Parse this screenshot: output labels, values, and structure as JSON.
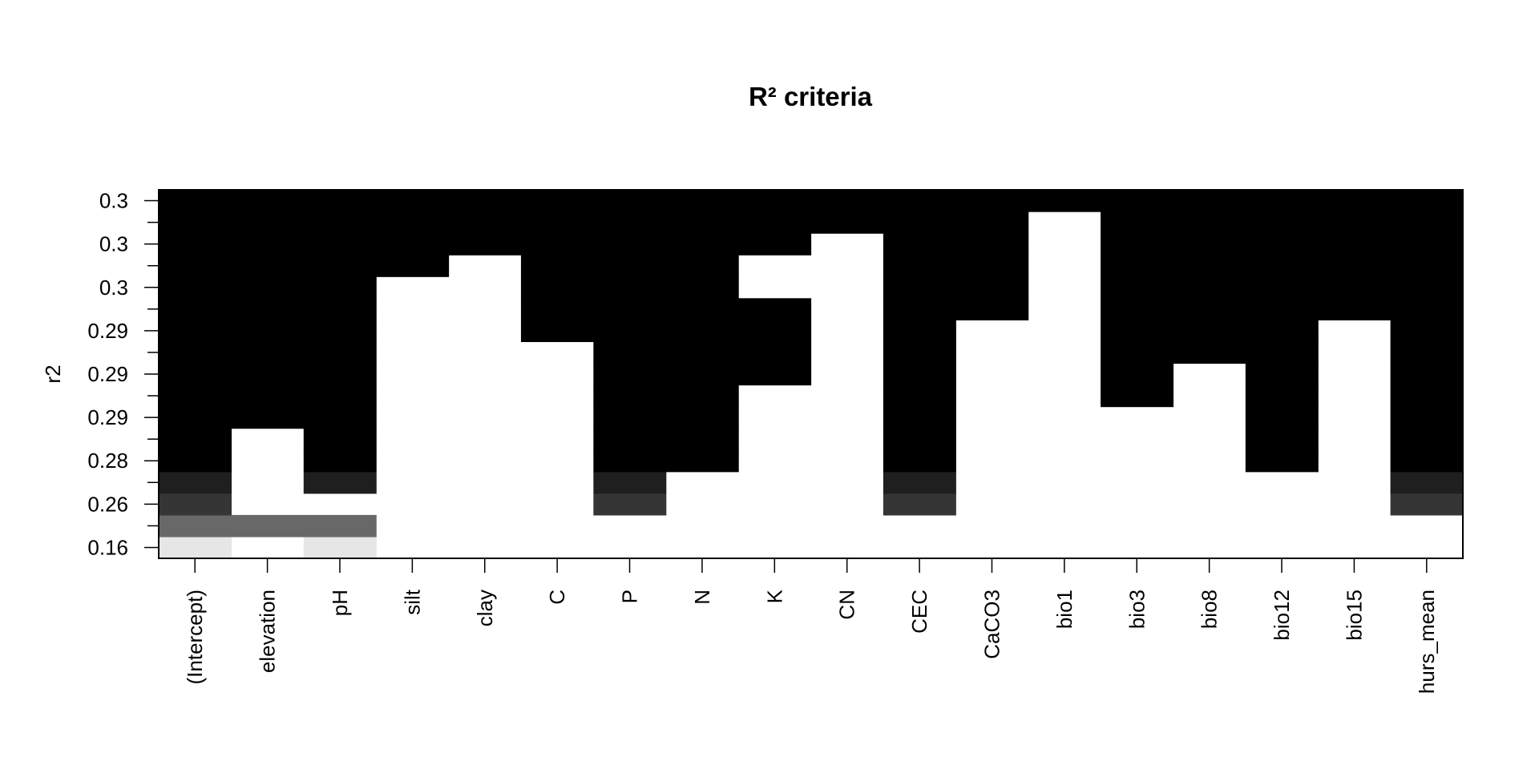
{
  "chart_data": {
    "type": "heatmap",
    "title": "R² criteria",
    "xlabel": "",
    "ylabel": "r2",
    "x_categories": [
      "(Intercept)",
      "elevation",
      "pH",
      "silt",
      "clay",
      "C",
      "P",
      "N",
      "K",
      "CN",
      "CEC",
      "CaCO3",
      "bio1",
      "bio3",
      "bio8",
      "bio12",
      "bio15",
      "hurs_mean"
    ],
    "y_tick_labels": [
      "0.16",
      "0.26",
      "0.26",
      "0.28",
      "0.28",
      "0.28",
      "0.29",
      "0.29",
      "0.29",
      "0.29",
      "0.29",
      "0.29",
      "0.3",
      "0.3",
      "0.3",
      "0.3",
      "0.3"
    ],
    "y_tick_labeled_rows": [
      0,
      2,
      4,
      6,
      8,
      10,
      12,
      14,
      16
    ],
    "row_shades": [
      "#e6e6e6",
      "#686868",
      "#353535",
      "#1f1f1f",
      "#000000",
      "#000000",
      "#000000",
      "#000000",
      "#000000",
      "#000000",
      "#000000",
      "#000000",
      "#000000",
      "#000000",
      "#000000",
      "#000000",
      "#000000"
    ],
    "inclusion_matrix_rows_bottom_to_top": [
      [
        1,
        0,
        1,
        0,
        0,
        0,
        0,
        0,
        0,
        0,
        0,
        0,
        0,
        0,
        0,
        0,
        0,
        0
      ],
      [
        1,
        1,
        1,
        0,
        0,
        0,
        0,
        0,
        0,
        0,
        0,
        0,
        0,
        0,
        0,
        0,
        0,
        0
      ],
      [
        1,
        0,
        0,
        0,
        0,
        0,
        1,
        0,
        0,
        0,
        1,
        0,
        0,
        0,
        0,
        0,
        0,
        1
      ],
      [
        1,
        0,
        1,
        0,
        0,
        0,
        1,
        0,
        0,
        0,
        1,
        0,
        0,
        0,
        0,
        0,
        0,
        1
      ],
      [
        1,
        0,
        1,
        0,
        0,
        0,
        1,
        1,
        0,
        0,
        1,
        0,
        0,
        0,
        0,
        1,
        0,
        1
      ],
      [
        1,
        0,
        1,
        0,
        0,
        0,
        1,
        1,
        0,
        0,
        1,
        0,
        0,
        0,
        0,
        1,
        0,
        1
      ],
      [
        1,
        1,
        1,
        0,
        0,
        0,
        1,
        1,
        0,
        0,
        1,
        0,
        0,
        0,
        0,
        1,
        0,
        1
      ],
      [
        1,
        1,
        1,
        0,
        0,
        0,
        1,
        1,
        0,
        0,
        1,
        0,
        0,
        1,
        0,
        1,
        0,
        1
      ],
      [
        1,
        1,
        1,
        0,
        0,
        0,
        1,
        1,
        1,
        0,
        1,
        0,
        0,
        1,
        0,
        1,
        0,
        1
      ],
      [
        1,
        1,
        1,
        0,
        0,
        0,
        1,
        1,
        1,
        0,
        1,
        0,
        0,
        1,
        1,
        1,
        0,
        1
      ],
      [
        1,
        1,
        1,
        0,
        0,
        1,
        1,
        1,
        1,
        0,
        1,
        0,
        0,
        1,
        1,
        1,
        0,
        1
      ],
      [
        1,
        1,
        1,
        0,
        0,
        1,
        1,
        1,
        1,
        0,
        1,
        1,
        0,
        1,
        1,
        1,
        1,
        1
      ],
      [
        1,
        1,
        1,
        0,
        0,
        1,
        1,
        1,
        0,
        0,
        1,
        1,
        0,
        1,
        1,
        1,
        1,
        1
      ],
      [
        1,
        1,
        1,
        1,
        0,
        1,
        1,
        1,
        0,
        0,
        1,
        1,
        0,
        1,
        1,
        1,
        1,
        1
      ],
      [
        1,
        1,
        1,
        1,
        1,
        1,
        1,
        1,
        1,
        0,
        1,
        1,
        0,
        1,
        1,
        1,
        1,
        1
      ],
      [
        1,
        1,
        1,
        1,
        1,
        1,
        1,
        1,
        1,
        1,
        1,
        1,
        0,
        1,
        1,
        1,
        1,
        1
      ],
      [
        1,
        1,
        1,
        1,
        1,
        1,
        1,
        1,
        1,
        1,
        1,
        1,
        1,
        1,
        1,
        1,
        1,
        1
      ]
    ],
    "grid": false,
    "legend": "none"
  }
}
